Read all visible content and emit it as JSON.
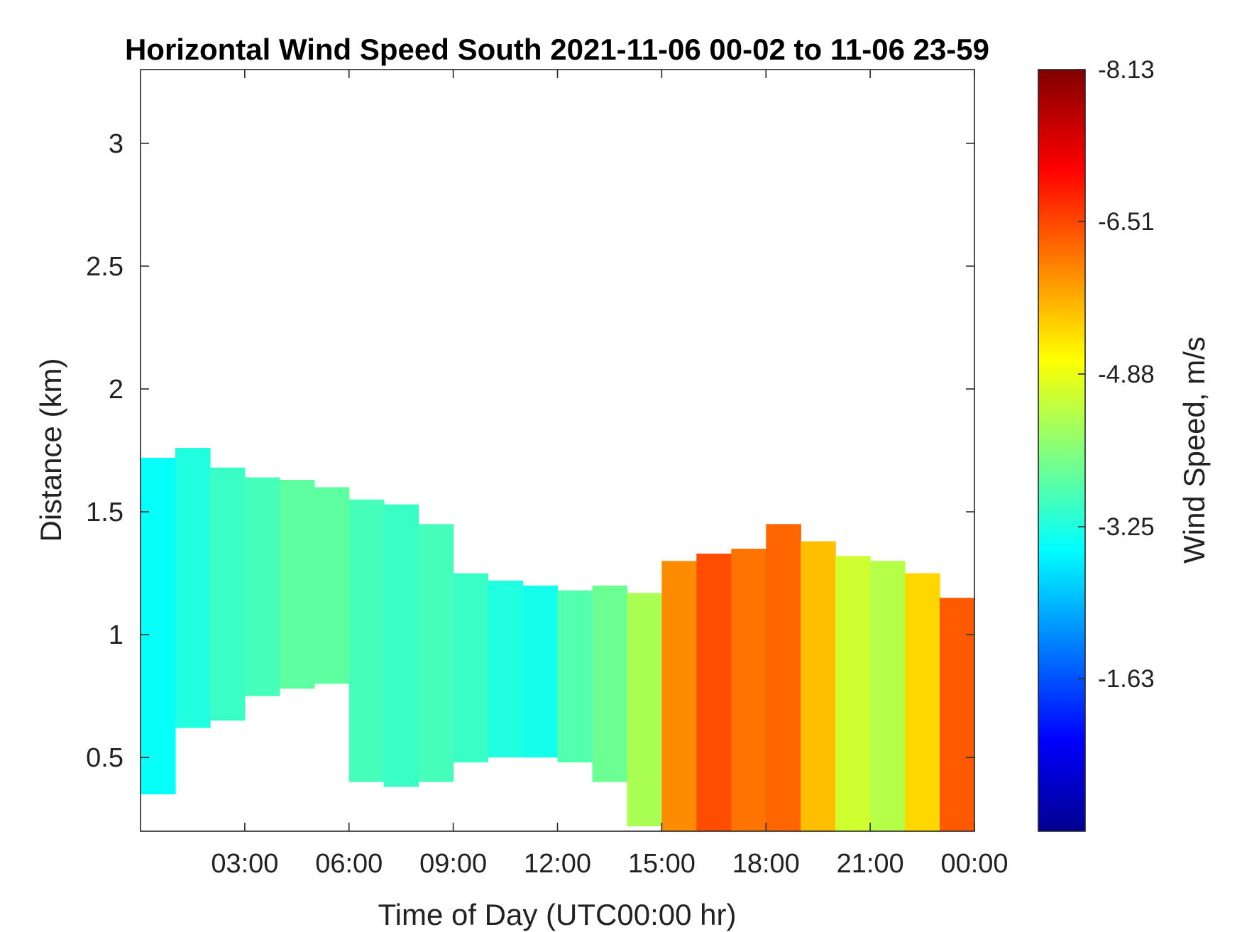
{
  "chart_data": {
    "type": "heatmap",
    "title": "Horizontal Wind Speed South 2021-11-06 00-02 to 11-06 23-59",
    "xlabel": "Time of Day (UTC00:00 hr)",
    "ylabel": "Distance (km)",
    "xlim": [
      0.0,
      24.0
    ],
    "ylim": [
      0.2,
      3.3
    ],
    "x_ticks": [
      {
        "value": 3,
        "label": "03:00"
      },
      {
        "value": 6,
        "label": "06:00"
      },
      {
        "value": 9,
        "label": "09:00"
      },
      {
        "value": 12,
        "label": "12:00"
      },
      {
        "value": 15,
        "label": "15:00"
      },
      {
        "value": 18,
        "label": "18:00"
      },
      {
        "value": 21,
        "label": "21:00"
      },
      {
        "value": 24,
        "label": "00:00"
      }
    ],
    "y_ticks": [
      {
        "value": 0.5,
        "label": "0.5"
      },
      {
        "value": 1.0,
        "label": "1"
      },
      {
        "value": 1.5,
        "label": "1.5"
      },
      {
        "value": 2.0,
        "label": "2"
      },
      {
        "value": 2.5,
        "label": "2.5"
      },
      {
        "value": 3.0,
        "label": "3"
      }
    ],
    "colorbar": {
      "label": "Wind Speed, m/s",
      "colormap": "jet",
      "range": [
        -0.0,
        -8.13
      ],
      "ticks": [
        {
          "value": -8.13,
          "label": "-8.13"
        },
        {
          "value": -6.51,
          "label": "-6.51"
        },
        {
          "value": -4.88,
          "label": "-4.88"
        },
        {
          "value": -3.25,
          "label": "-3.25"
        },
        {
          "value": -1.63,
          "label": "-1.63"
        }
      ]
    },
    "column_step_hours": 1,
    "columns": [
      {
        "t": 0.5,
        "bottom": 0.35,
        "top": 1.72,
        "speed": -3.1
      },
      {
        "t": 1.5,
        "bottom": 0.62,
        "top": 1.76,
        "speed": -3.3
      },
      {
        "t": 2.5,
        "bottom": 0.65,
        "top": 1.68,
        "speed": -3.5
      },
      {
        "t": 3.5,
        "bottom": 0.75,
        "top": 1.64,
        "speed": -3.6
      },
      {
        "t": 4.5,
        "bottom": 0.78,
        "top": 1.63,
        "speed": -3.8
      },
      {
        "t": 5.5,
        "bottom": 0.8,
        "top": 1.6,
        "speed": -3.8
      },
      {
        "t": 6.5,
        "bottom": 0.4,
        "top": 1.55,
        "speed": -3.6
      },
      {
        "t": 7.5,
        "bottom": 0.38,
        "top": 1.53,
        "speed": -3.5
      },
      {
        "t": 8.5,
        "bottom": 0.4,
        "top": 1.45,
        "speed": -3.6
      },
      {
        "t": 9.5,
        "bottom": 0.48,
        "top": 1.25,
        "speed": -3.5
      },
      {
        "t": 10.5,
        "bottom": 0.5,
        "top": 1.22,
        "speed": -3.3
      },
      {
        "t": 11.5,
        "bottom": 0.5,
        "top": 1.2,
        "speed": -3.2
      },
      {
        "t": 12.5,
        "bottom": 0.48,
        "top": 1.18,
        "speed": -3.7
      },
      {
        "t": 13.5,
        "bottom": 0.4,
        "top": 1.2,
        "speed": -3.9
      },
      {
        "t": 14.5,
        "bottom": 0.22,
        "top": 1.17,
        "speed": -4.4
      },
      {
        "t": 15.5,
        "bottom": 0.2,
        "top": 1.3,
        "speed": -6.0
      },
      {
        "t": 16.5,
        "bottom": 0.2,
        "top": 1.33,
        "speed": -6.5
      },
      {
        "t": 17.5,
        "bottom": 0.2,
        "top": 1.35,
        "speed": -6.2
      },
      {
        "t": 18.5,
        "bottom": 0.2,
        "top": 1.45,
        "speed": -6.3
      },
      {
        "t": 19.5,
        "bottom": 0.2,
        "top": 1.38,
        "speed": -5.6
      },
      {
        "t": 20.5,
        "bottom": 0.2,
        "top": 1.32,
        "speed": -4.7
      },
      {
        "t": 21.5,
        "bottom": 0.2,
        "top": 1.3,
        "speed": -4.5
      },
      {
        "t": 22.5,
        "bottom": 0.2,
        "top": 1.25,
        "speed": -5.4
      },
      {
        "t": 23.5,
        "bottom": 0.2,
        "top": 1.15,
        "speed": -6.4
      }
    ]
  }
}
